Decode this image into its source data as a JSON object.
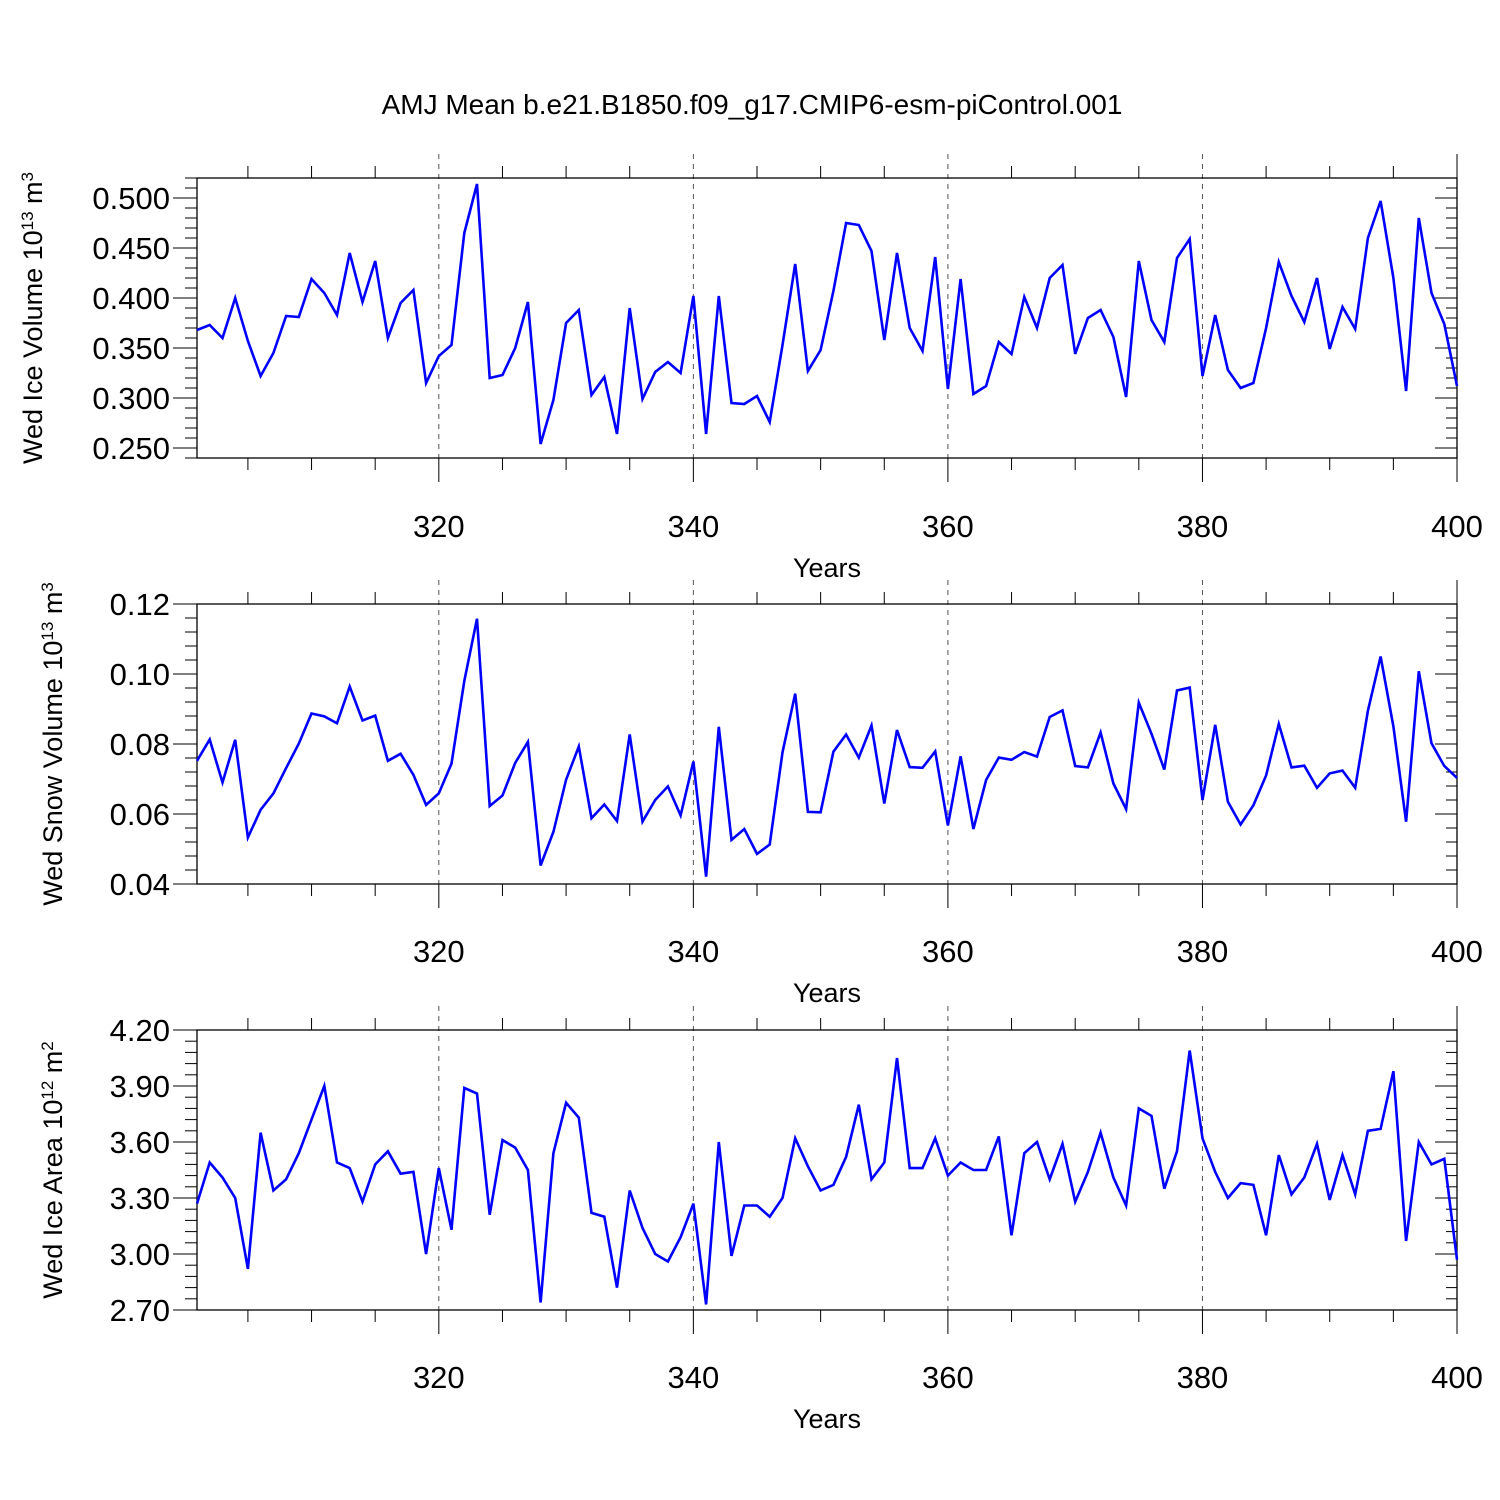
{
  "chart_data": [
    {
      "type": "line",
      "title": "AMJ Mean b.e21.B1850.f09_g17.CMIP6-esm-piControl.001",
      "ylabel_base": "Wed Ice Volume 10",
      "ylabel_exp": "13",
      "ylabel_unit": " m",
      "ylabel_unit_exp": "3",
      "xlabel": "Years",
      "xlim": [
        301,
        400
      ],
      "ylim": [
        0.24,
        0.52
      ],
      "yticks": [
        0.25,
        0.3,
        0.35,
        0.4,
        0.45,
        0.5
      ],
      "ytick_labels": [
        "0.250",
        "0.300",
        "0.350",
        "0.400",
        "0.450",
        "0.500"
      ],
      "xticks": [
        320,
        340,
        360,
        380,
        400
      ],
      "xtick_labels": [
        "320",
        "340",
        "360",
        "380",
        "400"
      ],
      "series": [
        {
          "name": "Wed Ice Volume",
          "color": "#0000ff",
          "x_start": 301,
          "values": [
            0.368,
            0.373,
            0.36,
            0.4,
            0.357,
            0.322,
            0.345,
            0.382,
            0.381,
            0.419,
            0.405,
            0.383,
            0.445,
            0.396,
            0.437,
            0.36,
            0.395,
            0.408,
            0.315,
            0.342,
            0.353,
            0.465,
            0.514,
            0.32,
            0.323,
            0.35,
            0.396,
            0.254,
            0.298,
            0.375,
            0.388,
            0.303,
            0.321,
            0.264,
            0.39,
            0.299,
            0.326,
            0.336,
            0.325,
            0.402,
            0.264,
            0.402,
            0.295,
            0.294,
            0.302,
            0.276,
            0.353,
            0.434,
            0.327,
            0.348,
            0.407,
            0.475,
            0.473,
            0.447,
            0.358,
            0.445,
            0.37,
            0.347,
            0.441,
            0.309,
            0.419,
            0.304,
            0.312,
            0.356,
            0.344,
            0.401,
            0.37,
            0.42,
            0.433,
            0.344,
            0.38,
            0.388,
            0.361,
            0.301,
            0.437,
            0.378,
            0.356,
            0.44,
            0.459,
            0.322,
            0.383,
            0.328,
            0.31,
            0.315,
            0.37,
            0.436,
            0.402,
            0.376,
            0.42,
            0.349,
            0.391,
            0.369,
            0.46,
            0.497,
            0.42,
            0.307,
            0.48,
            0.405,
            0.374,
            0.312
          ]
        }
      ]
    },
    {
      "type": "line",
      "ylabel_base": "Wed Snow Volume 10",
      "ylabel_exp": "13",
      "ylabel_unit": " m",
      "ylabel_unit_exp": "3",
      "xlabel": "Years",
      "xlim": [
        301,
        400
      ],
      "ylim": [
        0.04,
        0.12
      ],
      "yticks": [
        0.04,
        0.06,
        0.08,
        0.1,
        0.12
      ],
      "ytick_labels": [
        "0.04",
        "0.06",
        "0.08",
        "0.10",
        "0.12"
      ],
      "xticks": [
        320,
        340,
        360,
        380,
        400
      ],
      "xtick_labels": [
        "320",
        "340",
        "360",
        "380",
        "400"
      ],
      "series": [
        {
          "name": "Wed Snow Volume",
          "color": "#0000ff",
          "x_start": 301,
          "values": [
            0.0752,
            0.0813,
            0.069,
            0.0812,
            0.0533,
            0.0612,
            0.0659,
            0.0731,
            0.0801,
            0.0887,
            0.0879,
            0.0859,
            0.0964,
            0.0867,
            0.0881,
            0.0752,
            0.0772,
            0.0712,
            0.0626,
            0.0659,
            0.0744,
            0.098,
            0.1158,
            0.0623,
            0.0653,
            0.0746,
            0.0806,
            0.0453,
            0.0549,
            0.0698,
            0.0793,
            0.0588,
            0.0627,
            0.058,
            0.0827,
            0.0578,
            0.064,
            0.0679,
            0.0596,
            0.075,
            0.0421,
            0.0849,
            0.0526,
            0.0557,
            0.0486,
            0.0513,
            0.0776,
            0.0944,
            0.0606,
            0.0605,
            0.0778,
            0.0827,
            0.0761,
            0.0853,
            0.063,
            0.084,
            0.0734,
            0.0732,
            0.0779,
            0.0567,
            0.0765,
            0.0557,
            0.0697,
            0.0761,
            0.0755,
            0.0777,
            0.0764,
            0.0877,
            0.0896,
            0.0737,
            0.0733,
            0.0833,
            0.0687,
            0.0614,
            0.0918,
            0.0829,
            0.0727,
            0.0953,
            0.0961,
            0.064,
            0.0855,
            0.0635,
            0.057,
            0.0625,
            0.071,
            0.0857,
            0.0733,
            0.0738,
            0.0675,
            0.0716,
            0.0724,
            0.0675,
            0.0895,
            0.105,
            0.085,
            0.0578,
            0.1008,
            0.0802,
            0.0737,
            0.0703
          ]
        }
      ]
    },
    {
      "type": "line",
      "ylabel_base": "Wed Ice Area 10",
      "ylabel_exp": "12",
      "ylabel_unit": " m",
      "ylabel_unit_exp": "2",
      "xlabel": "Years",
      "xlim": [
        301,
        400
      ],
      "ylim": [
        2.7,
        4.2
      ],
      "yticks": [
        2.7,
        3.0,
        3.3,
        3.6,
        3.9,
        4.2
      ],
      "ytick_labels": [
        "2.70",
        "3.00",
        "3.30",
        "3.60",
        "3.90",
        "4.20"
      ],
      "xticks": [
        320,
        340,
        360,
        380,
        400
      ],
      "xtick_labels": [
        "320",
        "340",
        "360",
        "380",
        "400"
      ],
      "series": [
        {
          "name": "Wed Ice Area",
          "color": "#0000ff",
          "x_start": 301,
          "values": [
            3.27,
            3.49,
            3.41,
            3.3,
            2.92,
            3.65,
            3.34,
            3.4,
            3.54,
            3.72,
            3.9,
            3.49,
            3.46,
            3.28,
            3.48,
            3.55,
            3.43,
            3.44,
            3.0,
            3.46,
            3.13,
            3.89,
            3.86,
            3.21,
            3.61,
            3.57,
            3.45,
            2.74,
            3.54,
            3.81,
            3.73,
            3.22,
            3.2,
            2.82,
            3.34,
            3.14,
            3.0,
            2.96,
            3.09,
            3.27,
            2.73,
            3.6,
            2.99,
            3.26,
            3.26,
            3.2,
            3.3,
            3.62,
            3.47,
            3.34,
            3.37,
            3.52,
            3.8,
            3.4,
            3.49,
            4.05,
            3.46,
            3.46,
            3.62,
            3.42,
            3.49,
            3.45,
            3.45,
            3.63,
            3.1,
            3.54,
            3.6,
            3.4,
            3.59,
            3.28,
            3.44,
            3.65,
            3.41,
            3.26,
            3.78,
            3.74,
            3.35,
            3.55,
            4.09,
            3.62,
            3.44,
            3.3,
            3.38,
            3.37,
            3.1,
            3.53,
            3.32,
            3.41,
            3.59,
            3.29,
            3.53,
            3.32,
            3.66,
            3.67,
            3.98,
            3.07,
            3.6,
            3.48,
            3.51,
            2.97
          ]
        }
      ]
    }
  ]
}
